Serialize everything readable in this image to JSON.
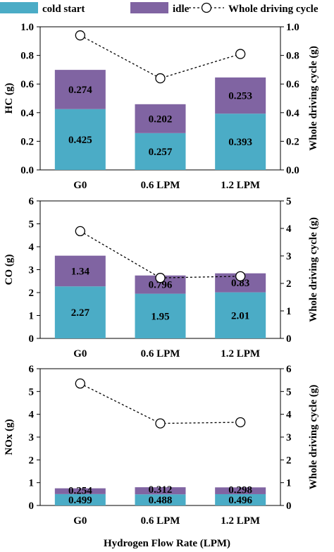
{
  "legend": {
    "cold_start": "cold start",
    "idle": "idle",
    "whole": "Whole driving cycle"
  },
  "colors": {
    "cold_start": "#4bacc6",
    "idle": "#8064a2",
    "line": "#000000",
    "marker_fill": "#ffffff"
  },
  "xlabel": "Hydrogen Flow Rate (LPM)",
  "chart_data": [
    {
      "type": "bar",
      "stacked": true,
      "categories": [
        "G0",
        "0.6 LPM",
        "1.2 LPM"
      ],
      "series": [
        {
          "name": "cold start",
          "values": [
            0.425,
            0.257,
            0.393
          ],
          "labels": [
            "0.425",
            "0.257",
            "0.393"
          ]
        },
        {
          "name": "idle",
          "values": [
            0.274,
            0.202,
            0.253
          ],
          "labels": [
            "0.274",
            "0.202",
            "0.253"
          ]
        }
      ],
      "line": {
        "name": "Whole driving cycle",
        "values": [
          0.94,
          0.64,
          0.81
        ],
        "axis": "right"
      },
      "ylabel": "HC (g)",
      "y2label": "Whole driving cycle (g)",
      "ylim": [
        0,
        1.0
      ],
      "y2lim": [
        0,
        1.0
      ],
      "yticks": [
        "0.0",
        "0.2",
        "0.4",
        "0.6",
        "0.8",
        "1.0"
      ],
      "y2ticks": [
        "0.0",
        "0.2",
        "0.4",
        "0.6",
        "0.8",
        "1.0"
      ]
    },
    {
      "type": "bar",
      "stacked": true,
      "categories": [
        "G0",
        "0.6 LPM",
        "1.2 LPM"
      ],
      "series": [
        {
          "name": "cold start",
          "values": [
            2.27,
            1.95,
            2.01
          ],
          "labels": [
            "2.27",
            "1.95",
            "2.01"
          ]
        },
        {
          "name": "idle",
          "values": [
            1.34,
            0.796,
            0.83
          ],
          "labels": [
            "1.34",
            "0.796",
            "0.83"
          ]
        }
      ],
      "line": {
        "name": "Whole driving cycle",
        "values": [
          3.9,
          2.2,
          2.26
        ],
        "axis": "right"
      },
      "ylabel": "CO (g)",
      "y2label": "Whole driving cycle (g)",
      "ylim": [
        0,
        6
      ],
      "y2lim": [
        0,
        5
      ],
      "yticks": [
        "0",
        "1",
        "2",
        "3",
        "4",
        "5",
        "6"
      ],
      "y2ticks": [
        "0",
        "1",
        "2",
        "3",
        "4",
        "5"
      ]
    },
    {
      "type": "bar",
      "stacked": true,
      "categories": [
        "G0",
        "0.6 LPM",
        "1.2 LPM"
      ],
      "series": [
        {
          "name": "cold start",
          "values": [
            0.499,
            0.488,
            0.496
          ],
          "labels": [
            "0.499",
            "0.488",
            "0.496"
          ]
        },
        {
          "name": "idle",
          "values": [
            0.254,
            0.312,
            0.298
          ],
          "labels": [
            "0.254",
            "0.312",
            "0.298"
          ]
        }
      ],
      "line": {
        "name": "Whole driving cycle",
        "values": [
          5.35,
          3.6,
          3.65
        ],
        "axis": "right"
      },
      "ylabel": "NOx (g)",
      "y2label": "Whole driving cycle (g)",
      "ylim": [
        0,
        6
      ],
      "y2lim": [
        0,
        6
      ],
      "yticks": [
        "0",
        "1",
        "2",
        "3",
        "4",
        "5",
        "6"
      ],
      "y2ticks": [
        "0",
        "1",
        "2",
        "3",
        "4",
        "5",
        "6"
      ]
    }
  ]
}
